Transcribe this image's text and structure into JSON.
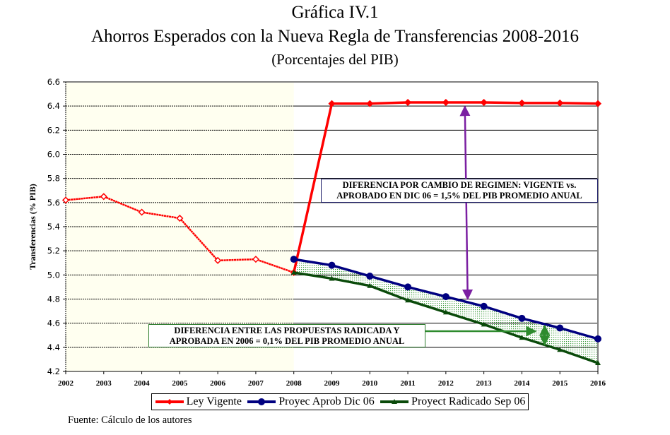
{
  "chart_data": {
    "type": "line",
    "title": "Gráfica IV.1",
    "subtitle": "Ahorros Esperados con la Nueva Regla de Transferencias  2008-2016",
    "subtitle2": "(Porcentajes del PIB)",
    "xlabel": "",
    "ylabel": "Transferencias (% PIB)",
    "ylim": [
      4.2,
      6.6
    ],
    "xlim": [
      2002,
      2016
    ],
    "grid": true,
    "legend_position": "bottom",
    "y_ticks": [
      "4.2",
      "4.4",
      "4.6",
      "4.8",
      "5.0",
      "5.2",
      "5.4",
      "5.6",
      "5.8",
      "6.0",
      "6.2",
      "6.4",
      "6.6"
    ],
    "x_ticks": [
      "2002",
      "2003",
      "2004",
      "2005",
      "2006",
      "2007",
      "2008",
      "2009",
      "2010",
      "2011",
      "2012",
      "2013",
      "2014",
      "2015",
      "2016"
    ],
    "shaded_region": {
      "from": 2002,
      "to": 2008,
      "color": "#fffff0"
    },
    "series": [
      {
        "name": "Ley Vigente",
        "color": "#ff0000",
        "marker": "diamond",
        "x": [
          2002,
          2003,
          2004,
          2005,
          2006,
          2007,
          2008,
          2009,
          2010,
          2011,
          2012,
          2013,
          2014,
          2015,
          2016
        ],
        "values": [
          5.62,
          5.65,
          5.52,
          5.47,
          5.12,
          5.13,
          5.02,
          6.42,
          6.42,
          6.43,
          6.43,
          6.43,
          6.425,
          6.425,
          6.42
        ]
      },
      {
        "name": "Proyec Aprob Dic 06",
        "color": "#000080",
        "marker": "circle",
        "x": [
          2008,
          2009,
          2010,
          2011,
          2012,
          2013,
          2014,
          2015,
          2016
        ],
        "values": [
          5.13,
          5.08,
          4.99,
          4.9,
          4.82,
          4.74,
          4.64,
          4.56,
          4.47
        ]
      },
      {
        "name": "Proyect Radicado Sep 06",
        "color": "#0a4a0a",
        "marker": "triangle",
        "x": [
          2008,
          2009,
          2010,
          2011,
          2012,
          2013,
          2014,
          2015,
          2016
        ],
        "values": [
          5.02,
          4.97,
          4.91,
          4.79,
          4.69,
          4.59,
          4.48,
          4.38,
          4.27
        ]
      }
    ],
    "annotations": [
      {
        "id": "regime-diff",
        "lines": [
          "DIFERENCIA POR CAMBIO DE REGIMEN: VIGENTE  vs.",
          "APROBADO EN DIC 06 = 1,5% DEL PIB PROMEDIO ANUAL"
        ],
        "color": "#1a1a66",
        "arrow_color": "#7b1fa2",
        "arrow_x": 2012.5,
        "arrow_from": 6.42,
        "arrow_to": 4.8
      },
      {
        "id": "proposal-diff",
        "lines": [
          "DIFERENCIA ENTRE LAS PROPUESTAS RADICADA Y",
          "APROBADA EN 2006 = 0,1% DEL PIB PROMEDIO ANUAL"
        ],
        "color": "#2e7d2e",
        "arrow_color": "#2e8b2e",
        "arrow_x": 2014.6,
        "arrow_from": 4.58,
        "arrow_to": 4.42
      }
    ]
  },
  "footnote": "Fuente: Cálculo de los autores"
}
